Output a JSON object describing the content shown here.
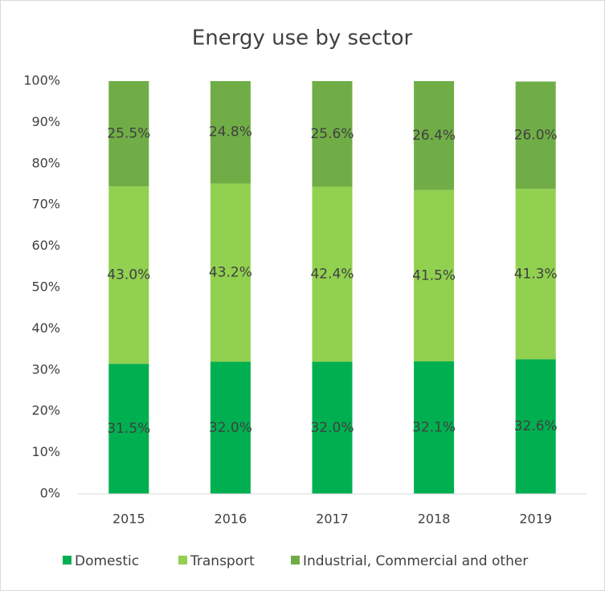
{
  "chart_data": {
    "type": "stacked_bar",
    "title": "Energy use by sector",
    "categories": [
      "2015",
      "2016",
      "2017",
      "2018",
      "2019"
    ],
    "series": [
      {
        "name": "Domestic",
        "color": "#00b050",
        "values": [
          31.5,
          32.0,
          32.0,
          32.1,
          32.6
        ],
        "value_labels": [
          "31.5%",
          "32.0%",
          "32.0%",
          "32.1%",
          "32.6%"
        ]
      },
      {
        "name": "Transport",
        "color": "#92d050",
        "values": [
          43.0,
          43.2,
          42.4,
          41.5,
          41.3
        ],
        "value_labels": [
          "43.0%",
          "43.2%",
          "42.4%",
          "41.5%",
          "41.3%"
        ]
      },
      {
        "name": "Industrial, Commercial and other",
        "color": "#70ad47",
        "values": [
          25.5,
          24.8,
          25.6,
          26.4,
          26.0
        ],
        "value_labels": [
          "25.5%",
          "24.8%",
          "25.6%",
          "26.4%",
          "26.0%"
        ]
      }
    ],
    "ylim": [
      0,
      100
    ],
    "yticks": [
      {
        "value": 0,
        "label": "0%"
      },
      {
        "value": 10,
        "label": "10%"
      },
      {
        "value": 20,
        "label": "20%"
      },
      {
        "value": 30,
        "label": "30%"
      },
      {
        "value": 40,
        "label": "40%"
      },
      {
        "value": 50,
        "label": "50%"
      },
      {
        "value": 60,
        "label": "60%"
      },
      {
        "value": 70,
        "label": "70%"
      },
      {
        "value": 80,
        "label": "80%"
      },
      {
        "value": 90,
        "label": "90%"
      },
      {
        "value": 100,
        "label": "100%"
      }
    ],
    "grid": false,
    "legend": "bottom"
  }
}
